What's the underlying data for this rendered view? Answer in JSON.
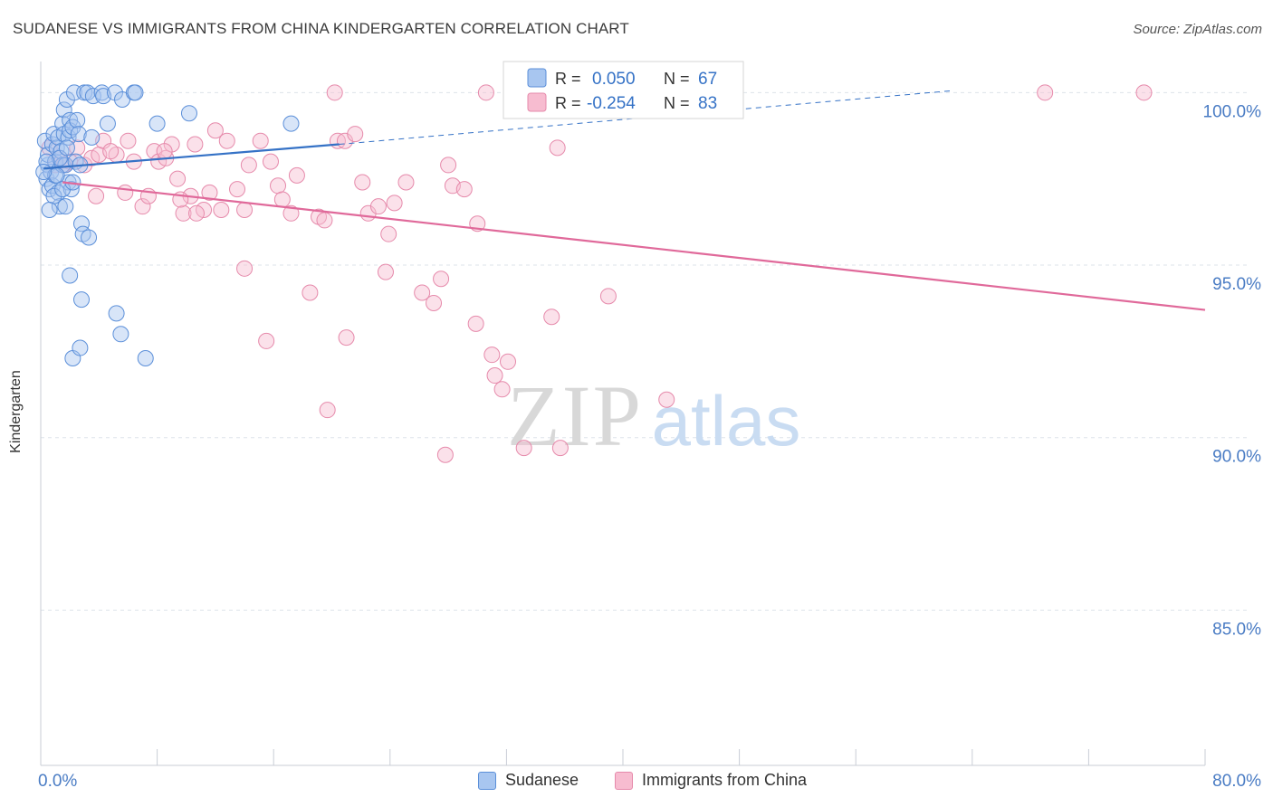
{
  "header": {
    "title": "SUDANESE VS IMMIGRANTS FROM CHINA KINDERGARTEN CORRELATION CHART",
    "source": "Source: ZipAtlas.com"
  },
  "watermark": {
    "zip": "ZIP",
    "atlas": "atlas"
  },
  "colors": {
    "blue_fill": "#a8c6f0",
    "blue_stroke": "#5b8fd9",
    "blue_line": "#3572c6",
    "pink_fill": "#f7bcd0",
    "pink_stroke": "#e68aab",
    "pink_line": "#e0699a",
    "axis_text": "#4a7cc4",
    "grid": "#dde3ea"
  },
  "legend": {
    "rows": [
      {
        "r_label": "R =",
        "r_value": "0.050",
        "n_label": "N =",
        "n_value": "67"
      },
      {
        "r_label": "R =",
        "r_value": "-0.254",
        "n_label": "N =",
        "n_value": "83"
      }
    ]
  },
  "chart_data": {
    "type": "scatter",
    "title": "SUDANESE VS IMMIGRANTS FROM CHINA KINDERGARTEN CORRELATION CHART",
    "xlabel": "",
    "ylabel": "Kindergarten",
    "xlim": [
      0,
      80
    ],
    "ylim": [
      80.5,
      100.9
    ],
    "x_tick_labels": [
      "0.0%",
      "80.0%"
    ],
    "y_ticks": [
      {
        "value": 100,
        "label": "100.0%"
      },
      {
        "value": 95,
        "label": "95.0%"
      },
      {
        "value": 90,
        "label": "90.0%"
      },
      {
        "value": 85,
        "label": "85.0%"
      }
    ],
    "grid": true,
    "legend_position": "top-center",
    "series": [
      {
        "name": "Sudanese",
        "r": 0.05,
        "n": 67,
        "trend": {
          "x": [
            0.2,
            20.5
          ],
          "y": [
            97.8,
            98.5
          ]
        },
        "trend_extension": {
          "x": [
            20.5,
            62.5
          ],
          "y": [
            98.5,
            100.05
          ]
        },
        "points": [
          [
            0.3,
            98.6
          ],
          [
            0.4,
            97.5
          ],
          [
            0.5,
            97.9
          ],
          [
            0.5,
            98.2
          ],
          [
            0.6,
            97.2
          ],
          [
            0.7,
            97.7
          ],
          [
            0.8,
            98.5
          ],
          [
            0.8,
            97.3
          ],
          [
            0.9,
            98.8
          ],
          [
            1.0,
            98.0
          ],
          [
            1.0,
            97.6
          ],
          [
            1.1,
            98.4
          ],
          [
            1.2,
            98.7
          ],
          [
            1.2,
            97.1
          ],
          [
            1.3,
            96.7
          ],
          [
            1.4,
            98.3
          ],
          [
            1.5,
            99.1
          ],
          [
            1.5,
            97.9
          ],
          [
            1.6,
            99.5
          ],
          [
            1.6,
            98.8
          ],
          [
            1.7,
            96.7
          ],
          [
            1.7,
            97.9
          ],
          [
            1.8,
            99.8
          ],
          [
            1.9,
            98.7
          ],
          [
            1.9,
            97.4
          ],
          [
            2.0,
            99.2
          ],
          [
            2.0,
            98.9
          ],
          [
            2.1,
            97.2
          ],
          [
            2.2,
            99.0
          ],
          [
            2.3,
            100.0
          ],
          [
            2.4,
            98.0
          ],
          [
            2.5,
            99.2
          ],
          [
            2.6,
            98.8
          ],
          [
            2.7,
            97.9
          ],
          [
            2.8,
            96.2
          ],
          [
            2.9,
            95.9
          ],
          [
            3.0,
            100.0
          ],
          [
            3.2,
            100.0
          ],
          [
            3.5,
            98.7
          ],
          [
            3.6,
            99.9
          ],
          [
            4.2,
            100.0
          ],
          [
            4.3,
            99.9
          ],
          [
            4.6,
            99.1
          ],
          [
            5.1,
            100.0
          ],
          [
            5.6,
            99.8
          ],
          [
            6.4,
            100.0
          ],
          [
            6.5,
            100.0
          ],
          [
            8.0,
            99.1
          ],
          [
            10.2,
            99.4
          ],
          [
            17.2,
            99.1
          ],
          [
            2.0,
            94.7
          ],
          [
            2.8,
            94.0
          ],
          [
            5.2,
            93.6
          ],
          [
            5.5,
            93.0
          ],
          [
            7.2,
            92.3
          ],
          [
            2.2,
            92.3
          ],
          [
            2.7,
            92.6
          ],
          [
            3.3,
            95.8
          ],
          [
            1.1,
            97.6
          ],
          [
            1.3,
            98.1
          ],
          [
            0.9,
            97.0
          ],
          [
            0.6,
            96.6
          ],
          [
            0.4,
            98.0
          ],
          [
            0.2,
            97.7
          ],
          [
            1.5,
            97.2
          ],
          [
            2.2,
            97.4
          ],
          [
            1.8,
            98.4
          ]
        ]
      },
      {
        "name": "Immigrants from China",
        "r": -0.254,
        "n": 83,
        "trend": {
          "x": [
            1.5,
            80
          ],
          "y": [
            97.4,
            93.7
          ]
        },
        "points": [
          [
            0.6,
            98.4
          ],
          [
            1.0,
            97.9
          ],
          [
            1.3,
            98.1
          ],
          [
            1.6,
            97.9
          ],
          [
            2.0,
            98.0
          ],
          [
            2.5,
            98.4
          ],
          [
            3.0,
            97.9
          ],
          [
            3.5,
            98.1
          ],
          [
            4.0,
            98.2
          ],
          [
            4.3,
            98.6
          ],
          [
            5.2,
            98.2
          ],
          [
            5.8,
            97.1
          ],
          [
            6.0,
            98.6
          ],
          [
            6.4,
            98.0
          ],
          [
            7.0,
            96.7
          ],
          [
            7.4,
            97.0
          ],
          [
            7.8,
            98.3
          ],
          [
            8.1,
            98.0
          ],
          [
            8.6,
            98.1
          ],
          [
            9.0,
            98.5
          ],
          [
            9.4,
            97.5
          ],
          [
            9.8,
            96.5
          ],
          [
            10.3,
            97.0
          ],
          [
            10.6,
            98.5
          ],
          [
            11.2,
            96.6
          ],
          [
            11.6,
            97.1
          ],
          [
            12.0,
            98.9
          ],
          [
            12.4,
            96.6
          ],
          [
            12.8,
            98.6
          ],
          [
            13.5,
            97.2
          ],
          [
            14.0,
            96.6
          ],
          [
            14.3,
            97.9
          ],
          [
            15.1,
            98.6
          ],
          [
            15.8,
            98.0
          ],
          [
            16.3,
            97.3
          ],
          [
            16.6,
            96.9
          ],
          [
            17.2,
            96.5
          ],
          [
            17.6,
            97.6
          ],
          [
            18.5,
            94.2
          ],
          [
            19.1,
            96.4
          ],
          [
            19.5,
            96.3
          ],
          [
            20.4,
            98.6
          ],
          [
            20.9,
            98.6
          ],
          [
            21.0,
            92.9
          ],
          [
            21.6,
            98.8
          ],
          [
            22.1,
            97.4
          ],
          [
            22.5,
            96.5
          ],
          [
            23.2,
            96.7
          ],
          [
            23.7,
            94.8
          ],
          [
            23.9,
            95.9
          ],
          [
            24.3,
            96.8
          ],
          [
            25.1,
            97.4
          ],
          [
            26.2,
            94.2
          ],
          [
            27.0,
            93.9
          ],
          [
            27.5,
            94.6
          ],
          [
            28.0,
            97.9
          ],
          [
            28.3,
            97.3
          ],
          [
            29.1,
            97.2
          ],
          [
            30.0,
            96.2
          ],
          [
            29.9,
            93.3
          ],
          [
            30.6,
            100.0
          ],
          [
            31.0,
            92.4
          ],
          [
            31.2,
            91.8
          ],
          [
            31.7,
            91.4
          ],
          [
            32.1,
            92.2
          ],
          [
            33.2,
            89.7
          ],
          [
            35.1,
            93.5
          ],
          [
            35.5,
            98.4
          ],
          [
            35.7,
            89.7
          ],
          [
            39.0,
            94.1
          ],
          [
            43.0,
            91.1
          ],
          [
            69.0,
            100.0
          ],
          [
            75.8,
            100.0
          ],
          [
            20.2,
            100.0
          ],
          [
            27.8,
            89.5
          ],
          [
            19.7,
            90.8
          ],
          [
            15.5,
            92.8
          ],
          [
            14.0,
            94.9
          ],
          [
            9.6,
            96.9
          ],
          [
            10.7,
            96.5
          ],
          [
            8.5,
            98.3
          ],
          [
            3.8,
            97.0
          ],
          [
            4.8,
            98.3
          ]
        ]
      }
    ]
  },
  "bottom_legend": {
    "items": [
      {
        "label": "Sudanese"
      },
      {
        "label": "Immigrants from China"
      }
    ]
  }
}
